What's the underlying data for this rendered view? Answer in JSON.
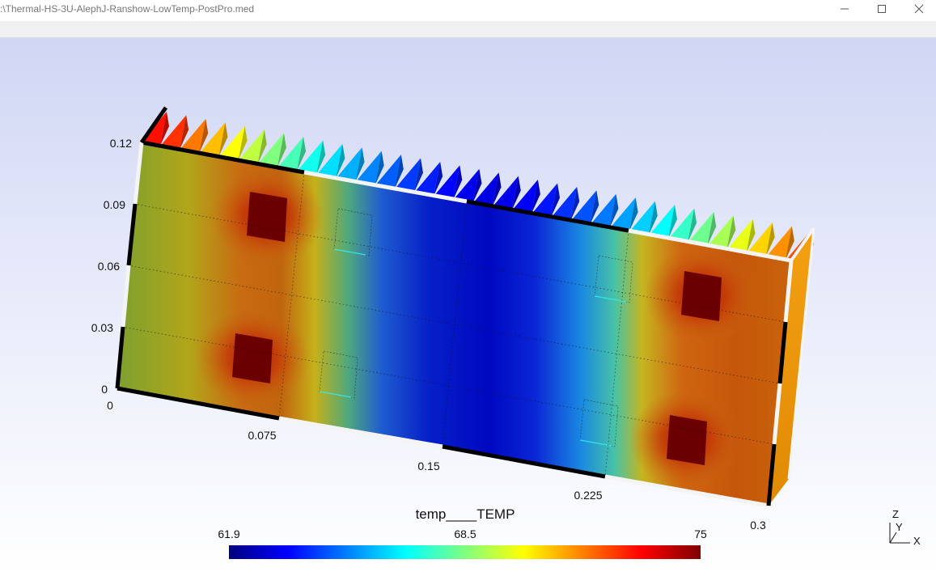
{
  "window": {
    "title": ":\\Thermal-HS-3U-AlephJ-Ranshow-LowTemp-PostPro.med",
    "minimize_icon": "minimize-icon",
    "maximize_icon": "maximize-icon",
    "close_icon": "close-icon"
  },
  "plot": {
    "y_axis": {
      "ticks": [
        "0.12",
        "0.09",
        "0.06",
        "0.03",
        "0"
      ],
      "range": [
        0,
        0.12
      ]
    },
    "x_axis": {
      "ticks": [
        "0",
        "0.075",
        "0.15",
        "0.225",
        "0.3"
      ],
      "range": [
        0,
        0.3
      ]
    },
    "fin_count": 34,
    "hot_spots": 4
  },
  "legend": {
    "title": "temp____TEMP",
    "min": "61.9",
    "mid": "68.5",
    "max": "75",
    "colors": [
      "#00007f",
      "#0000ff",
      "#00ffff",
      "#ffff00",
      "#ff0000",
      "#7f0000"
    ]
  },
  "orientation": {
    "z": "Z",
    "y": "Y",
    "x": "X"
  }
}
